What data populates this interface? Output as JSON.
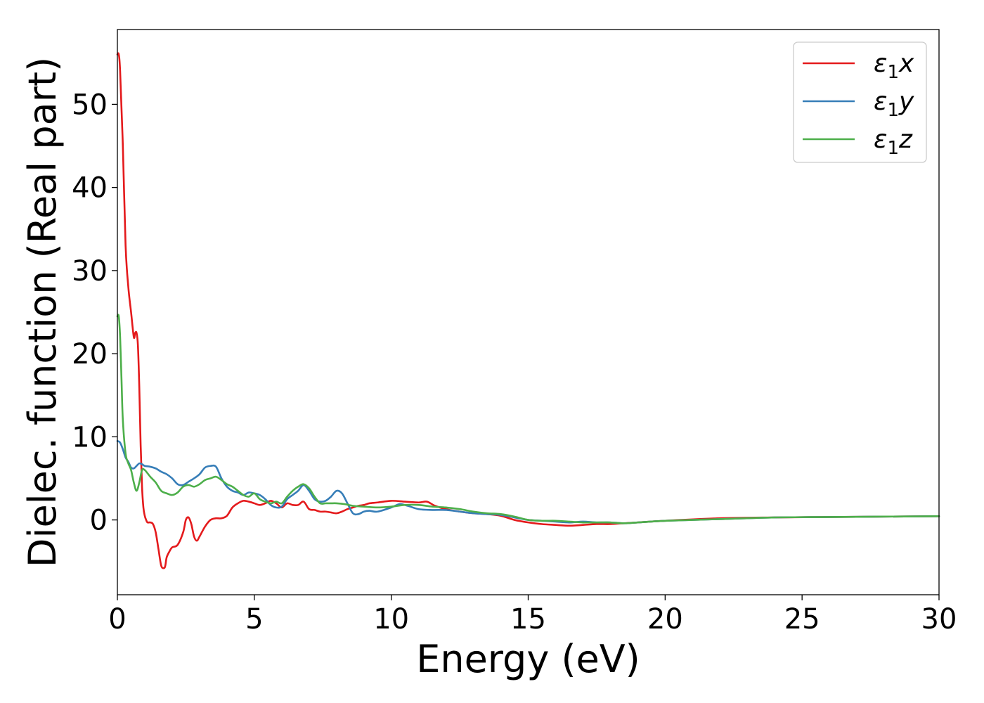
{
  "chart_data": {
    "type": "line",
    "xlabel": "Energy (eV)",
    "ylabel": "Dielec. function (Real part)",
    "xlim": [
      0,
      30
    ],
    "ylim": [
      -9,
      59
    ],
    "xticks": [
      0,
      5,
      10,
      15,
      20,
      25,
      30
    ],
    "yticks": [
      0,
      10,
      20,
      30,
      40,
      50
    ],
    "grid": false,
    "legend_position": "top-right",
    "series": [
      {
        "name": "ε₁x",
        "name_main": "ε",
        "name_sub": "1",
        "name_suffix": "x",
        "color": "#e41a1c",
        "x": [
          0.0,
          0.05,
          0.1,
          0.2,
          0.3,
          0.4,
          0.5,
          0.6,
          0.65,
          0.7,
          0.75,
          0.8,
          0.85,
          0.9,
          0.95,
          1.0,
          1.05,
          1.1,
          1.2,
          1.3,
          1.4,
          1.5,
          1.6,
          1.7,
          1.75,
          1.8,
          1.9,
          2.0,
          2.2,
          2.4,
          2.5,
          2.6,
          2.7,
          2.8,
          2.9,
          3.0,
          3.2,
          3.4,
          3.6,
          3.8,
          4.0,
          4.2,
          4.4,
          4.6,
          4.8,
          5.0,
          5.2,
          5.4,
          5.6,
          5.8,
          6.0,
          6.2,
          6.4,
          6.6,
          6.8,
          7.0,
          7.2,
          7.4,
          7.6,
          7.8,
          8.0,
          8.2,
          8.4,
          8.6,
          8.8,
          9.0,
          9.2,
          9.5,
          10.0,
          10.5,
          11.0,
          11.3,
          11.6,
          12.0,
          12.5,
          13.0,
          13.5,
          14.0,
          14.5,
          15.0,
          15.5,
          16.0,
          16.5,
          17.0,
          17.5,
          18.0,
          18.5,
          19.0,
          20.0,
          22.0,
          24.0,
          26.0,
          28.0,
          30.0
        ],
        "values": [
          56,
          56,
          54,
          45,
          33,
          28,
          25,
          22,
          22.5,
          22.5,
          21,
          16,
          9,
          4,
          1.5,
          0.5,
          0,
          -0.3,
          -0.3,
          -0.5,
          -1.5,
          -3.5,
          -5.5,
          -5.8,
          -5.5,
          -4.5,
          -3.8,
          -3.3,
          -3.0,
          -1.5,
          0.0,
          0.3,
          -0.5,
          -2.0,
          -2.5,
          -2.0,
          -0.8,
          0.0,
          0.2,
          0.2,
          0.5,
          1.5,
          2.0,
          2.3,
          2.2,
          2.0,
          1.8,
          2.0,
          2.3,
          2.0,
          1.5,
          2.0,
          1.8,
          1.8,
          2.2,
          1.3,
          1.2,
          1.0,
          1.0,
          0.9,
          0.8,
          1.0,
          1.3,
          1.5,
          1.7,
          1.8,
          2.0,
          2.1,
          2.3,
          2.2,
          2.1,
          2.2,
          1.7,
          1.3,
          1.0,
          0.8,
          0.7,
          0.5,
          0.0,
          -0.3,
          -0.5,
          -0.6,
          -0.7,
          -0.6,
          -0.5,
          -0.5,
          -0.4,
          -0.3,
          -0.1,
          0.2,
          0.3,
          0.35,
          0.4,
          0.45
        ]
      },
      {
        "name": "ε₁y",
        "name_main": "ε",
        "name_sub": "1",
        "name_suffix": "y",
        "color": "#377eb8",
        "x": [
          0.0,
          0.1,
          0.2,
          0.3,
          0.4,
          0.5,
          0.6,
          0.7,
          0.8,
          0.9,
          1.0,
          1.2,
          1.4,
          1.6,
          1.8,
          2.0,
          2.2,
          2.4,
          2.6,
          2.8,
          3.0,
          3.2,
          3.4,
          3.6,
          3.8,
          4.0,
          4.2,
          4.4,
          4.6,
          4.8,
          5.0,
          5.2,
          5.4,
          5.6,
          5.8,
          6.0,
          6.2,
          6.4,
          6.6,
          6.8,
          7.0,
          7.2,
          7.4,
          7.6,
          7.8,
          8.0,
          8.2,
          8.4,
          8.6,
          8.8,
          9.0,
          9.2,
          9.5,
          10.0,
          10.3,
          10.6,
          11.0,
          11.5,
          12.0,
          12.5,
          13.0,
          13.5,
          14.0,
          14.5,
          15.0,
          15.5,
          16.0,
          16.5,
          17.0,
          17.5,
          18.0,
          18.5,
          19.0,
          20.0,
          22.0,
          24.0,
          26.0,
          28.0,
          30.0
        ],
        "values": [
          9.5,
          9.3,
          8.5,
          7.5,
          7.0,
          6.3,
          6.2,
          6.5,
          6.8,
          6.7,
          6.5,
          6.4,
          6.2,
          5.8,
          5.5,
          5.0,
          4.3,
          4.2,
          4.6,
          5.0,
          5.5,
          6.3,
          6.5,
          6.4,
          5.0,
          4.0,
          3.5,
          3.3,
          3.0,
          3.3,
          3.2,
          3.0,
          2.5,
          1.8,
          1.5,
          1.6,
          2.5,
          3.0,
          3.5,
          4.2,
          3.5,
          2.5,
          2.2,
          2.3,
          2.8,
          3.5,
          3.2,
          2.0,
          0.8,
          0.7,
          1.0,
          1.1,
          1.0,
          1.5,
          1.9,
          1.7,
          1.3,
          1.2,
          1.2,
          1.0,
          0.8,
          0.7,
          0.6,
          0.3,
          0.0,
          -0.1,
          -0.2,
          -0.3,
          -0.2,
          -0.3,
          -0.3,
          -0.4,
          -0.3,
          -0.1,
          0.1,
          0.3,
          0.35,
          0.4,
          0.45
        ]
      },
      {
        "name": "ε₁z",
        "name_main": "ε",
        "name_sub": "1",
        "name_suffix": "z",
        "color": "#4daf4a",
        "x": [
          0.0,
          0.05,
          0.1,
          0.15,
          0.2,
          0.3,
          0.4,
          0.5,
          0.6,
          0.7,
          0.8,
          0.9,
          1.0,
          1.2,
          1.4,
          1.6,
          1.8,
          2.0,
          2.2,
          2.4,
          2.6,
          2.8,
          3.0,
          3.2,
          3.4,
          3.6,
          3.8,
          4.0,
          4.2,
          4.4,
          4.6,
          4.8,
          5.0,
          5.2,
          5.4,
          5.6,
          5.8,
          6.0,
          6.2,
          6.4,
          6.6,
          6.8,
          7.0,
          7.2,
          7.4,
          7.6,
          7.8,
          8.0,
          8.3,
          8.6,
          9.0,
          9.5,
          10.0,
          10.5,
          11.0,
          11.5,
          12.0,
          12.5,
          13.0,
          13.5,
          14.0,
          14.5,
          15.0,
          15.5,
          16.0,
          16.5,
          17.0,
          17.5,
          18.0,
          18.5,
          19.0,
          20.0,
          22.0,
          24.0,
          26.0,
          28.0,
          30.0
        ],
        "values": [
          24.5,
          24.5,
          22,
          17,
          12,
          8,
          6.8,
          6.0,
          4.5,
          3.5,
          4.5,
          6.0,
          6.0,
          5.2,
          4.5,
          3.5,
          3.2,
          3.0,
          3.3,
          4.0,
          4.2,
          4.0,
          4.3,
          4.8,
          5.0,
          5.2,
          4.8,
          4.3,
          4.0,
          3.5,
          3.0,
          2.8,
          3.2,
          2.5,
          2.2,
          2.0,
          2.2,
          2.0,
          2.8,
          3.5,
          4.0,
          4.3,
          3.8,
          2.8,
          2.0,
          2.0,
          2.0,
          2.0,
          1.9,
          1.7,
          1.6,
          1.5,
          1.6,
          1.8,
          1.8,
          1.6,
          1.5,
          1.3,
          1.0,
          0.8,
          0.7,
          0.4,
          0.0,
          -0.1,
          -0.1,
          -0.2,
          -0.3,
          -0.3,
          -0.3,
          -0.4,
          -0.3,
          -0.1,
          0.1,
          0.3,
          0.35,
          0.4,
          0.45
        ]
      }
    ]
  }
}
